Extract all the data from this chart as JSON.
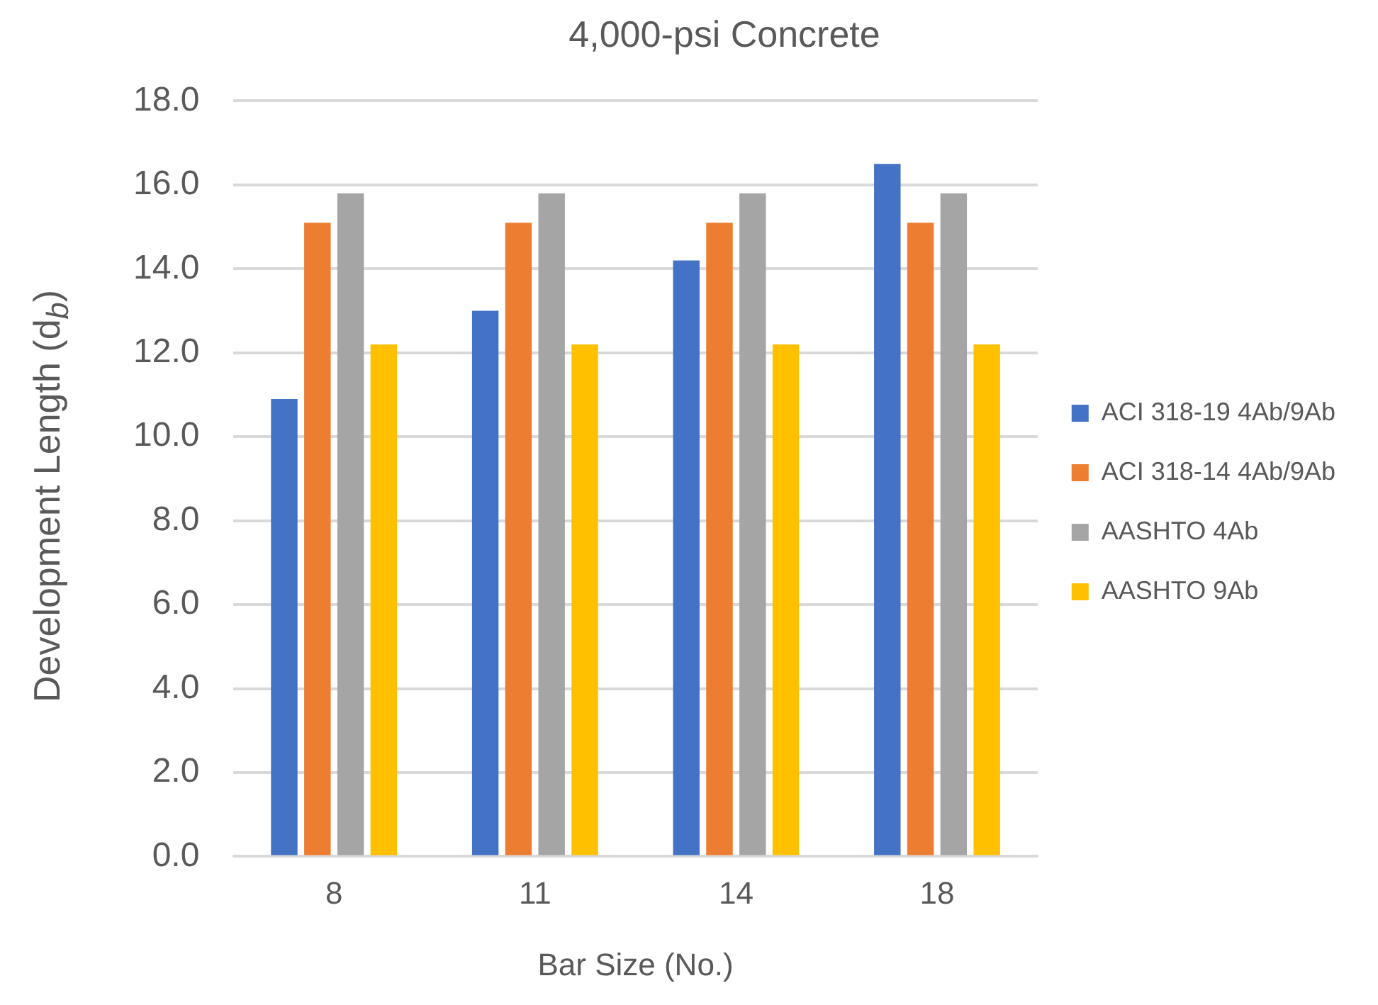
{
  "chart_data": {
    "type": "bar",
    "title": "4,000-psi Concrete",
    "xlabel": "Bar Size (No.)",
    "ylabel": "Development Length (d$_{b}$)",
    "categories": [
      "8",
      "11",
      "14",
      "18"
    ],
    "series": [
      {
        "name": "ACI 318-19 4Ab/9Ab",
        "color": "#4472c4",
        "values": [
          10.9,
          13.0,
          14.2,
          16.5
        ]
      },
      {
        "name": "ACI 318-14 4Ab/9Ab",
        "color": "#ed7d31",
        "values": [
          15.1,
          15.1,
          15.1,
          15.1
        ]
      },
      {
        "name": "AASHTO 4Ab",
        "color": "#a5a5a5",
        "values": [
          15.8,
          15.8,
          15.8,
          15.8
        ]
      },
      {
        "name": "AASHTO 9Ab",
        "color": "#ffc000",
        "values": [
          12.2,
          12.2,
          12.2,
          12.2
        ]
      }
    ],
    "ylim": [
      0,
      18
    ],
    "yticks": [
      {
        "value": 0,
        "label": "0.0"
      },
      {
        "value": 2,
        "label": "2.0"
      },
      {
        "value": 4,
        "label": "4.0"
      },
      {
        "value": 6,
        "label": "6.0"
      },
      {
        "value": 8,
        "label": "8.0"
      },
      {
        "value": 10,
        "label": "10.0"
      },
      {
        "value": 12,
        "label": "12.0"
      },
      {
        "value": 14,
        "label": "14.0"
      },
      {
        "value": 16,
        "label": "16.0"
      },
      {
        "value": 18,
        "label": "18.0"
      }
    ],
    "grid": "y",
    "legend": "right"
  }
}
